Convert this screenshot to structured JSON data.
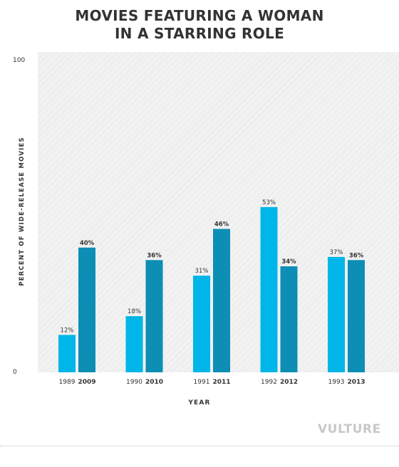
{
  "chart_data": {
    "type": "bar",
    "title_lines": [
      "MOVIES FEATURING A WOMAN",
      "IN A STARRING ROLE"
    ],
    "ylabel": "PERCENT OF WIDE-RELEASE MOVIES",
    "xlabel": "YEAR",
    "ylim": [
      0,
      100
    ],
    "yticks": [
      "0",
      "100"
    ],
    "value_suffix": "%",
    "grid": false,
    "background": "diagonal-hatch",
    "groups": [
      {
        "years": [
          "1989",
          "2009"
        ],
        "values": [
          12,
          40
        ]
      },
      {
        "years": [
          "1990",
          "2010"
        ],
        "values": [
          18,
          36
        ]
      },
      {
        "years": [
          "1991",
          "2011"
        ],
        "values": [
          31,
          46
        ]
      },
      {
        "years": [
          "1992",
          "2012"
        ],
        "values": [
          53,
          34
        ]
      },
      {
        "years": [
          "1993",
          "2013"
        ],
        "values": [
          37,
          36
        ]
      }
    ],
    "colors": {
      "earlier": "#00b5e8",
      "later": "#0d8eb5",
      "plot_bg": "#f2f2f2",
      "hatch": "#e2e2e2"
    }
  },
  "branding": {
    "logo": "VULTURE"
  }
}
